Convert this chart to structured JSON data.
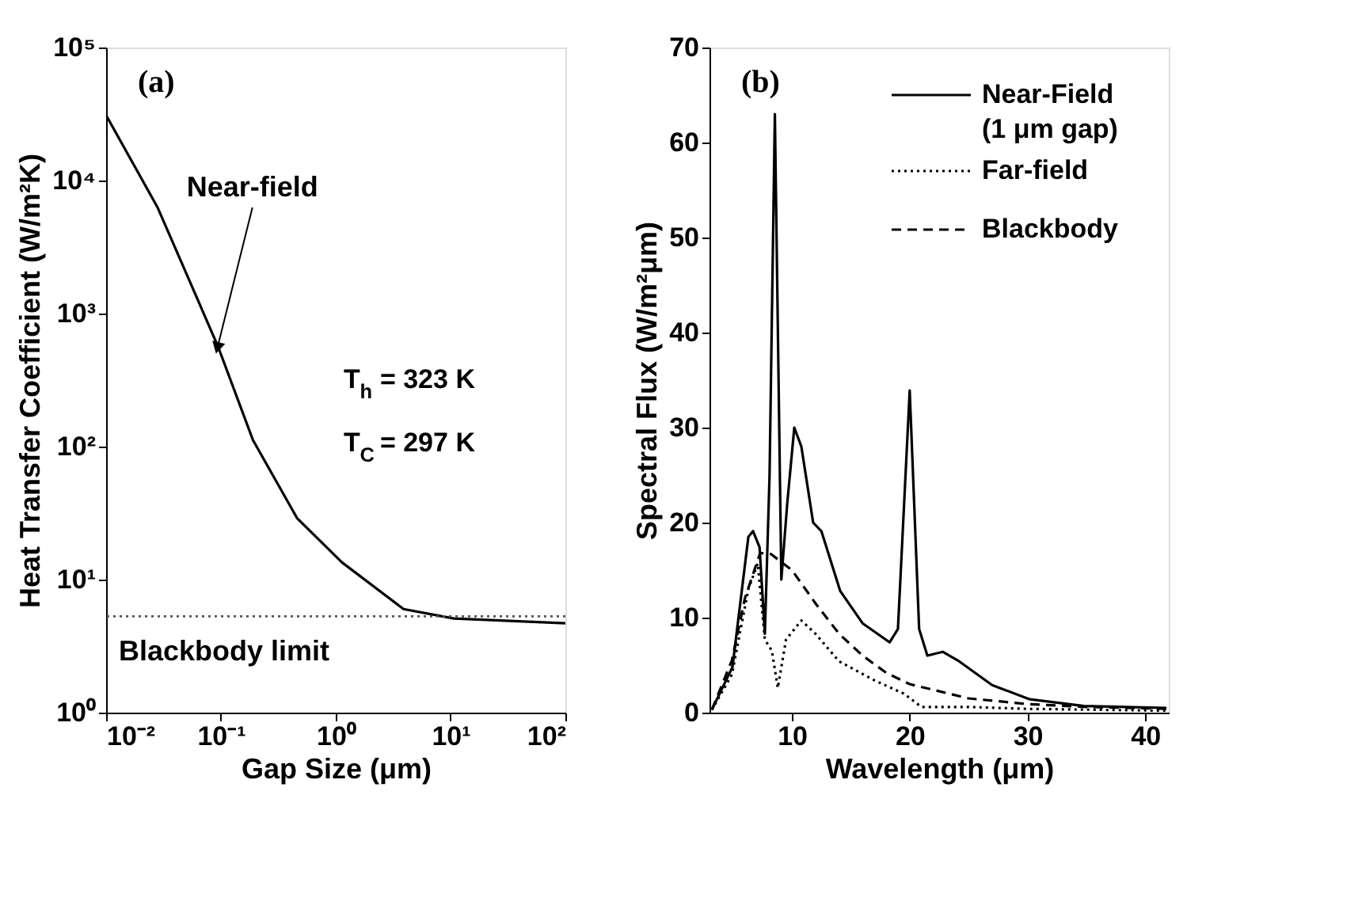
{
  "chart_data": [
    {
      "type": "line",
      "xlabel": "Gap Size (μm)",
      "ylabel": "Heat Transfer Coefficient (W/m²K)",
      "log": "xy",
      "grid": false,
      "legend": false,
      "marker": "none",
      "xlim": [
        0.01,
        100
      ],
      "ylim": [
        1,
        100000
      ],
      "xticks": [
        {
          "value": 0.01,
          "label": "10⁻²"
        },
        {
          "value": 0.1,
          "label": "10⁻¹"
        },
        {
          "value": 1,
          "label": "10⁰"
        },
        {
          "value": 10,
          "label": "10¹"
        },
        {
          "value": 100,
          "label": "10²"
        }
      ],
      "yticks": [
        {
          "value": 1,
          "label": "10⁰"
        },
        {
          "value": 10,
          "label": "10¹"
        },
        {
          "value": 100,
          "label": "10²"
        },
        {
          "value": 1000,
          "label": "10³"
        },
        {
          "value": 10000,
          "label": "10⁴"
        },
        {
          "value": 100000,
          "label": "10⁵"
        }
      ],
      "series": [
        {
          "color": "#000000",
          "line_style": "solid",
          "x": [
            0.01,
            0.028,
            0.094,
            0.19,
            0.46,
            1.13,
            3.9,
            10.7,
            100
          ],
          "values": [
            31000,
            6300,
            570,
            112,
            29,
            13.5,
            6.0,
            5.1,
            4.7
          ]
        }
      ],
      "ref_lines": [
        {
          "axis": "y",
          "value": 5.3,
          "label": "Blackbody limit",
          "color": "#555555",
          "line_style": "dotted"
        }
      ],
      "annotations": [
        "(a)",
        {
          "text": "Near-field",
          "x": 0.094,
          "y": 570
        },
        "T$_{h}$ = 323 K",
        "T$_{C}$ = 297 K"
      ]
    },
    {
      "type": "line",
      "xlabel": "Wavelength (μm)",
      "ylabel": "Spectral Flux (W/m²μm)",
      "grid": false,
      "legend": "top right",
      "marker": "none",
      "xlim": [
        3,
        42
      ],
      "ylim": [
        0,
        70
      ],
      "xticks": [
        10,
        20,
        30,
        40
      ],
      "yticks": [
        0,
        10,
        20,
        30,
        40,
        50,
        60,
        70
      ],
      "series": [
        {
          "name": "Near-Field (1 μm gap)",
          "color": "#000000",
          "line_style": "solid",
          "x": [
            3.2,
            4.95,
            6.3,
            6.7,
            7.25,
            7.7,
            8.1,
            8.55,
            9.1,
            9.6,
            10.2,
            10.8,
            11.8,
            12.5,
            14.1,
            16,
            18.3,
            19,
            20,
            20.8,
            21.5,
            22.8,
            24.2,
            27,
            30.2,
            34.8,
            41.8
          ],
          "values": [
            0.3,
            4.8,
            18.5,
            19.1,
            17.4,
            8.3,
            25,
            63,
            14,
            22,
            30,
            28,
            20,
            19.1,
            12.8,
            9.4,
            7.4,
            8.8,
            33.9,
            8.8,
            6,
            6.4,
            5.4,
            2.9,
            1.4,
            0.7,
            0.5
          ]
        },
        {
          "name": "Far-field",
          "color": "#000000",
          "line_style": "dotted",
          "x": [
            3.2,
            4.9,
            6.3,
            7.1,
            7.7,
            8.3,
            8.8,
            9.5,
            10.8,
            12,
            14,
            17,
            19.5,
            21,
            25,
            30,
            42
          ],
          "values": [
            0.3,
            4,
            13,
            15.7,
            7.7,
            6.5,
            2.6,
            7.7,
            9.7,
            8.3,
            5.4,
            3.4,
            2,
            0.6,
            0.6,
            0.4,
            0.2
          ]
        },
        {
          "name": "Blackbody",
          "color": "#000000",
          "line_style": "dashed",
          "x": [
            3.2,
            4.9,
            6,
            7.3,
            8.2,
            10,
            12,
            14,
            16,
            18,
            20,
            25,
            30,
            35,
            42
          ],
          "values": [
            0.3,
            5.5,
            12,
            16.8,
            16.7,
            15,
            11.5,
            8.3,
            6,
            4.2,
            3,
            1.5,
            0.9,
            0.6,
            0.4
          ]
        }
      ],
      "annotations": [
        "(b)"
      ]
    }
  ]
}
